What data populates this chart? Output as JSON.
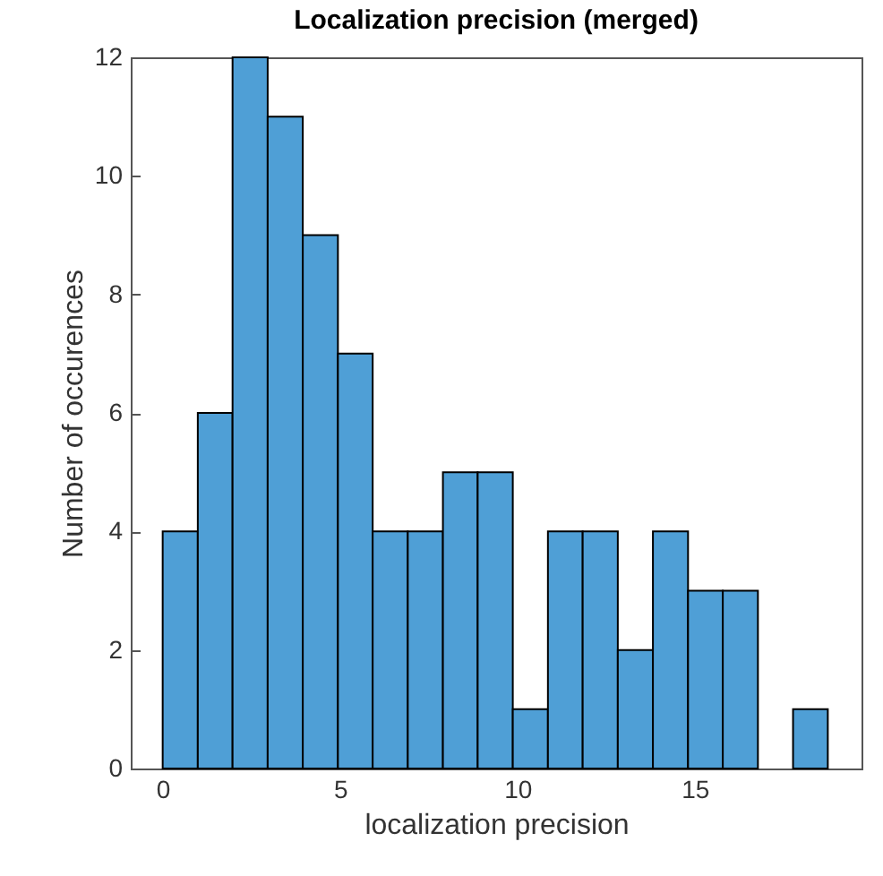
{
  "chart_data": {
    "type": "histogram",
    "title": "Localization precision (merged)",
    "xlabel": "localization precision",
    "ylabel": "Number of occurences",
    "bins": [
      0,
      0.99,
      1.97,
      2.96,
      3.95,
      4.94,
      5.92,
      6.91,
      7.9,
      8.88,
      9.87,
      10.86,
      11.84,
      12.83,
      13.82,
      14.81,
      15.79,
      16.78,
      17.77,
      18.75
    ],
    "values": [
      4,
      6,
      12,
      11,
      9,
      7,
      4,
      4,
      5,
      5,
      1,
      4,
      4,
      2,
      4,
      3,
      3,
      0,
      1
    ],
    "color": "#4f9fd6",
    "xlim": [
      -0.9,
      19.7
    ],
    "xticks": [
      0,
      5,
      10,
      15
    ],
    "ylim": [
      0,
      12
    ],
    "yticks": [
      0,
      2,
      4,
      6,
      8,
      10,
      12
    ],
    "grid": false
  }
}
